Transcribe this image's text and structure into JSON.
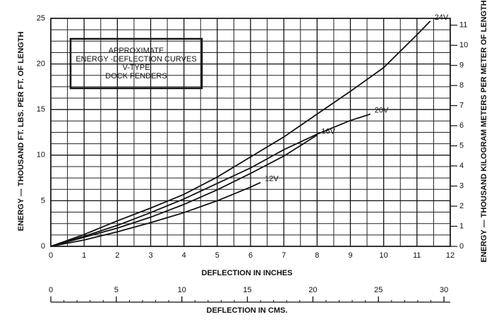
{
  "chart_data": {
    "type": "line",
    "title": [
      "APPROXIMATE",
      "ENERGY -DEFLECTION CURVES",
      "V-TYPE",
      "DOCK FENDERS"
    ],
    "x_label": "DEFLECTION IN INCHES",
    "x2_label": "DEFLECTION IN CMS.",
    "y_label": "ENERGY — THOUSAND FT. LBS. PER FT. OF LENGTH",
    "y2_label": "ENERGY — THOUSAND KILOGRAM METERS PER METER OF LENGTH",
    "xlim": [
      0,
      12
    ],
    "xticks": [
      0,
      1,
      2,
      3,
      4,
      5,
      6,
      7,
      8,
      9,
      10,
      11,
      12
    ],
    "x2lim": [
      0,
      30.48
    ],
    "x2ticks": [
      0,
      5,
      10,
      15,
      20,
      25,
      30
    ],
    "ylim": [
      0,
      25
    ],
    "yticks": [
      0,
      5,
      10,
      15,
      20,
      25
    ],
    "y2lim": [
      0,
      11.34
    ],
    "y2ticks": [
      0,
      1,
      2,
      3,
      4,
      5,
      6,
      7,
      8,
      9,
      10,
      11
    ],
    "grid": true,
    "series": [
      {
        "name": "24V",
        "color": "#111111",
        "x": [
          0,
          1,
          2,
          3,
          4,
          5,
          6,
          7,
          8,
          9,
          10,
          11,
          11.4
        ],
        "values": [
          0,
          1.3,
          2.8,
          4.2,
          5.7,
          7.6,
          9.8,
          12,
          14.5,
          17,
          19.6,
          23.2,
          24.7
        ]
      },
      {
        "name": "20V",
        "color": "#111111",
        "x": [
          0,
          1,
          2,
          3,
          4,
          5,
          6,
          7,
          8,
          9,
          9.6
        ],
        "values": [
          0,
          1.1,
          2.3,
          3.7,
          5.2,
          6.9,
          8.6,
          10.6,
          12.3,
          13.8,
          14.5
        ]
      },
      {
        "name": "16V",
        "color": "#111111",
        "x": [
          0,
          1,
          2,
          3,
          4,
          5,
          6,
          7,
          8
        ],
        "values": [
          0,
          1.0,
          2.0,
          3.2,
          4.6,
          6.2,
          8.0,
          9.9,
          12.2
        ]
      },
      {
        "name": "12V",
        "color": "#111111",
        "x": [
          0,
          1,
          2,
          3,
          4,
          5,
          6,
          6.3
        ],
        "values": [
          0,
          0.7,
          1.6,
          2.6,
          3.7,
          5.0,
          6.5,
          7.0
        ]
      }
    ]
  }
}
